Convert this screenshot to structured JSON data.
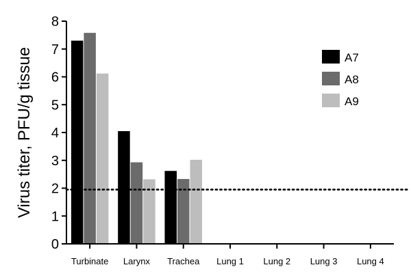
{
  "chart_data": {
    "type": "bar",
    "title": "",
    "xlabel": "",
    "ylabel": "Virus titer, PFU/g tissue",
    "ylim": [
      0,
      8
    ],
    "yticks": [
      "0",
      "1",
      "2",
      "3",
      "4",
      "5",
      "6",
      "7",
      "8"
    ],
    "categories": [
      "Turbinate",
      "Larynx",
      "Trachea",
      "Lung 1",
      "Lung 2",
      "Lung 3",
      "Lung 4"
    ],
    "series": [
      {
        "name": "A7",
        "color": "#000000",
        "values": [
          7.3,
          4.05,
          2.62,
          0,
          0,
          0,
          0
        ]
      },
      {
        "name": "A8",
        "color": "#6b6b6b",
        "values": [
          7.58,
          2.93,
          2.33,
          0,
          0,
          0,
          0
        ]
      },
      {
        "name": "A9",
        "color": "#bdbdbd",
        "values": [
          6.12,
          2.32,
          3.02,
          0,
          0,
          0,
          0
        ]
      }
    ],
    "reference_line": {
      "y": 1.95,
      "style": "dotted"
    },
    "legend_position": "top-right",
    "grid": false
  }
}
